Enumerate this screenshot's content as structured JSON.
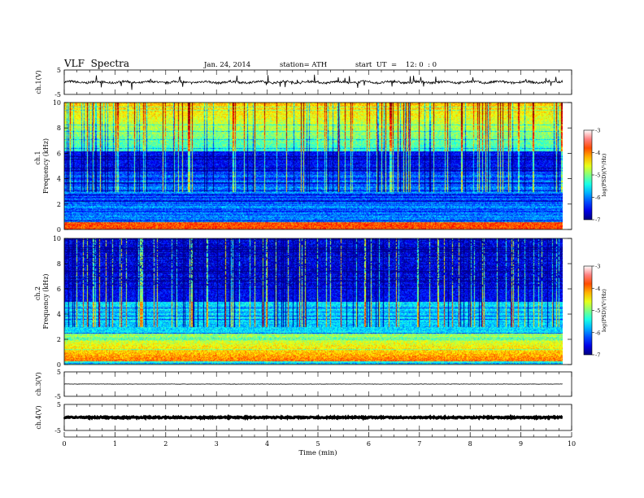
{
  "header": {
    "title": "VLF  Spectra",
    "date": "Jan. 24, 2014",
    "station": "station= ATH",
    "start": "start  UT  =    12: 0  : 0"
  },
  "chart_data": [
    {
      "type": "line",
      "id": "ch1",
      "ylabel": "ch.1(V)",
      "ylim": [
        -5,
        5
      ],
      "y_ticks": [
        "5",
        "-5"
      ],
      "xlim": [
        0,
        10
      ],
      "description_series": "waveform voltage about 0 V with spikes",
      "x_end": 9.82
    },
    {
      "type": "heatmap",
      "id": "ch1-spectrogram",
      "ylabel": "Frequency (kHz)",
      "panel_label": "ch.1",
      "ylim": [
        0,
        10
      ],
      "y_ticks": [
        "0",
        "2",
        "4",
        "6",
        "8",
        "10"
      ],
      "xlim": [
        0,
        10
      ],
      "x_end": 9.82,
      "colorbar": {
        "label": "log(PSD)(V²/Hz)",
        "range": [
          -7,
          -3
        ],
        "ticks": [
          "-3",
          "-4",
          "-5",
          "-6",
          "-7"
        ]
      }
    },
    {
      "type": "heatmap",
      "id": "ch2-spectrogram",
      "ylabel": "Frequency (kHz)",
      "panel_label": "ch.2",
      "ylim": [
        0,
        10
      ],
      "y_ticks": [
        "0",
        "2",
        "4",
        "6",
        "8",
        "10"
      ],
      "xlim": [
        0,
        10
      ],
      "x_end": 9.82,
      "colorbar": {
        "label": "log(PSD)(V²/Hz)",
        "range": [
          -7,
          -3
        ],
        "ticks": [
          "-3",
          "-4",
          "-5",
          "-6",
          "-7"
        ]
      }
    },
    {
      "type": "line",
      "id": "ch3",
      "ylabel": "ch.3(V)",
      "ylim": [
        -5,
        5
      ],
      "y_ticks": [
        "5",
        "-5"
      ],
      "xlim": [
        0,
        10
      ],
      "x_end": 9.82
    },
    {
      "type": "line",
      "id": "ch4",
      "ylabel": "ch.4(V)",
      "ylim": [
        -5,
        5
      ],
      "y_ticks": [
        "5",
        "-5"
      ],
      "xlim": [
        0,
        10
      ],
      "x_end": 9.82
    }
  ],
  "xaxis": {
    "label": "Time  (min)",
    "ticks": [
      "0",
      "1",
      "2",
      "3",
      "4",
      "5",
      "6",
      "7",
      "8",
      "9",
      "10"
    ]
  }
}
